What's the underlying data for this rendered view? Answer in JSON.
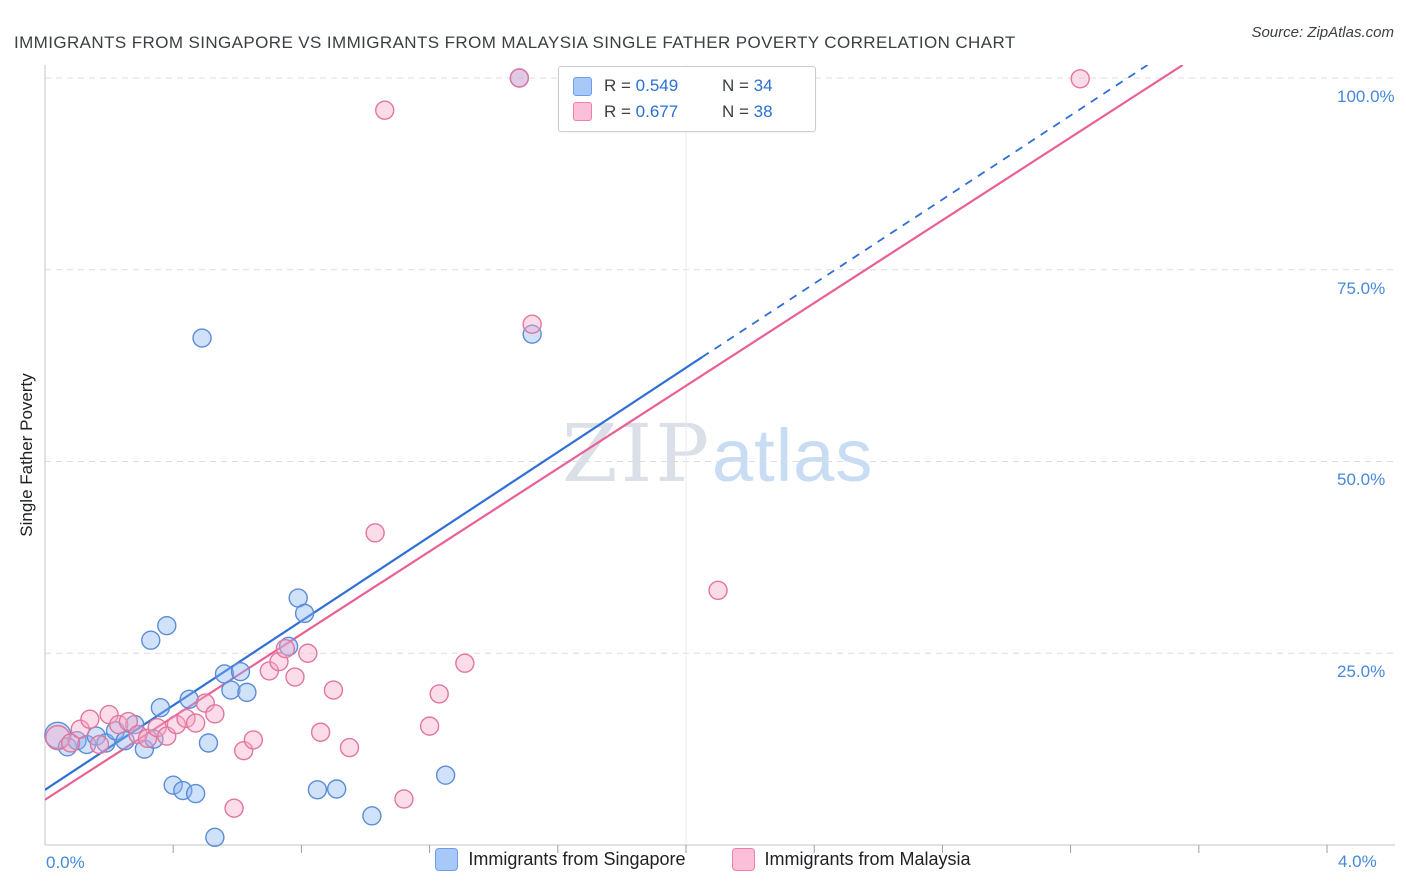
{
  "title": "IMMIGRANTS FROM SINGAPORE VS IMMIGRANTS FROM MALAYSIA SINGLE FATHER POVERTY CORRELATION CHART",
  "source": "Source: ZipAtlas.com",
  "watermark": {
    "zip": "ZIP",
    "atlas": "atlas"
  },
  "axes": {
    "y_label": "Single Father Poverty",
    "y_ticks": [
      "100.0%",
      "75.0%",
      "50.0%",
      "25.0%"
    ],
    "x_min_label": "0.0%",
    "x_max_label": "4.0%"
  },
  "legend_box": {
    "rows": [
      {
        "series": "Immigrants from Singapore",
        "r_label": "R = ",
        "r": "0.549",
        "n_label": "N = ",
        "n": "34"
      },
      {
        "series": "Immigrants from Malaysia",
        "r_label": "R = ",
        "r": "0.677",
        "n_label": "N = ",
        "n": "38"
      }
    ]
  },
  "bottom_legend": [
    {
      "label": "Immigrants from Singapore"
    },
    {
      "label": "Immigrants from Malaysia"
    }
  ],
  "colors": {
    "singapore_fill": "#8ab4f2",
    "singapore_stroke": "#5b8dd6",
    "singapore_line": "#2f6fd6",
    "malaysia_fill": "#f7a8c6",
    "malaysia_stroke": "#e1769f",
    "malaysia_line": "#ea5f96",
    "axis_label_blue": "#4688d9",
    "gridline": "#d9dde3"
  },
  "chart_data": {
    "type": "scatter",
    "title": "Immigrants from Singapore vs Immigrants from Malaysia Single Father Poverty Correlation",
    "xlabel": "",
    "ylabel": "Single Father Poverty",
    "x_unit": "%",
    "y_unit": "%",
    "xlim": [
      0,
      4.2
    ],
    "ylim": [
      0,
      101.7
    ],
    "gridlines_y": [
      25,
      50,
      75,
      100
    ],
    "gridlines_x": [
      2.0
    ],
    "x_ticks": [
      0.4,
      0.8,
      1.2,
      1.6,
      2.0,
      2.4,
      2.8,
      3.2,
      3.6,
      4.0
    ],
    "y_tick_values": [
      100,
      75,
      50,
      25
    ],
    "legend_position": "bottom",
    "series": [
      {
        "id": "singapore",
        "name": "Immigrants from Singapore",
        "R": 0.549,
        "N": 34,
        "points": [
          [
            0.04,
            14.3,
            13
          ],
          [
            0.07,
            12.8
          ],
          [
            0.1,
            13.6
          ],
          [
            0.13,
            13.1
          ],
          [
            0.16,
            14.2
          ],
          [
            0.19,
            13.3
          ],
          [
            0.22,
            14.9
          ],
          [
            0.25,
            13.6
          ],
          [
            0.28,
            15.7
          ],
          [
            0.31,
            12.5
          ],
          [
            0.33,
            26.7
          ],
          [
            0.34,
            13.8
          ],
          [
            0.36,
            17.9
          ],
          [
            0.38,
            28.6
          ],
          [
            0.4,
            7.8
          ],
          [
            0.43,
            7.1
          ],
          [
            0.45,
            19.0
          ],
          [
            0.47,
            6.7
          ],
          [
            0.49,
            66.1
          ],
          [
            0.51,
            13.3
          ],
          [
            0.53,
            1.0
          ],
          [
            0.56,
            22.3
          ],
          [
            0.58,
            20.2
          ],
          [
            0.61,
            22.6
          ],
          [
            0.63,
            19.9
          ],
          [
            0.76,
            25.9
          ],
          [
            0.79,
            32.2
          ],
          [
            0.81,
            30.2
          ],
          [
            0.85,
            7.2
          ],
          [
            0.91,
            7.3
          ],
          [
            1.02,
            3.8
          ],
          [
            1.25,
            9.1
          ],
          [
            1.48,
            100.0
          ],
          [
            1.52,
            66.6
          ]
        ]
      },
      {
        "id": "malaysia",
        "name": "Immigrants from Malaysia",
        "R": 0.677,
        "N": 38,
        "points": [
          [
            0.04,
            14.0,
            12
          ],
          [
            0.08,
            13.3
          ],
          [
            0.11,
            15.1
          ],
          [
            0.14,
            16.4
          ],
          [
            0.17,
            13.1
          ],
          [
            0.2,
            17.0
          ],
          [
            0.23,
            15.7
          ],
          [
            0.26,
            16.1
          ],
          [
            0.29,
            14.4
          ],
          [
            0.32,
            13.9
          ],
          [
            0.35,
            15.3
          ],
          [
            0.38,
            14.2
          ],
          [
            0.41,
            15.7
          ],
          [
            0.44,
            16.5
          ],
          [
            0.47,
            15.9
          ],
          [
            0.5,
            18.5
          ],
          [
            0.53,
            17.1
          ],
          [
            0.59,
            4.8
          ],
          [
            0.62,
            12.3
          ],
          [
            0.65,
            13.7
          ],
          [
            0.7,
            22.7
          ],
          [
            0.73,
            23.9
          ],
          [
            0.75,
            25.6
          ],
          [
            0.78,
            21.9
          ],
          [
            0.82,
            25.0
          ],
          [
            0.86,
            14.7
          ],
          [
            0.9,
            20.2
          ],
          [
            0.95,
            12.7
          ],
          [
            1.03,
            40.7
          ],
          [
            1.06,
            95.8
          ],
          [
            1.12,
            6.0
          ],
          [
            1.2,
            15.5
          ],
          [
            1.23,
            19.7
          ],
          [
            1.31,
            23.7
          ],
          [
            1.48,
            100.0
          ],
          [
            1.52,
            67.9
          ],
          [
            2.1,
            33.2
          ],
          [
            3.23,
            99.9
          ]
        ]
      }
    ],
    "trend_lines": [
      {
        "series": "singapore",
        "solid": [
          [
            0,
            7.2
          ],
          [
            2.05,
            63.6
          ]
        ],
        "dashed": [
          [
            2.05,
            63.6
          ],
          [
            3.44,
            101.7
          ]
        ]
      },
      {
        "series": "malaysia",
        "solid": [
          [
            0,
            5.9
          ],
          [
            3.55,
            101.7
          ]
        ]
      }
    ]
  }
}
